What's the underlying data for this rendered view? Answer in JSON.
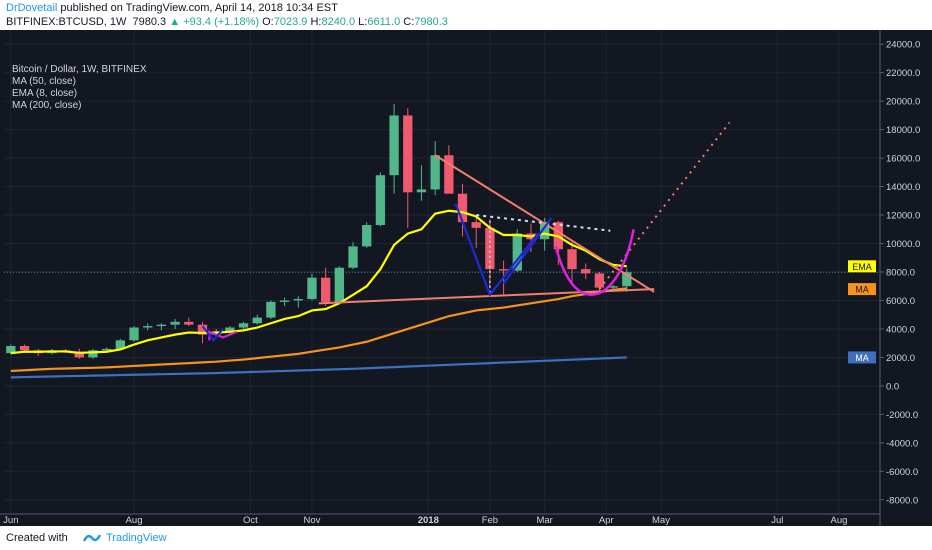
{
  "header": {
    "author": "DrDovetail",
    "published": "published on TradingView.com, April 14, 2018 10:34 EST",
    "symbol": "BITFINEX:BTCUSD, 1W",
    "last_price": "7980.3",
    "change": "+93.4 (+1.18%)",
    "o_label": "O:",
    "o_value": "7023.9",
    "h_label": "H:",
    "h_value": "8240.0",
    "l_label": "L:",
    "l_value": "6611.0",
    "c_label": "C:",
    "c_value": "7980.3"
  },
  "legend": {
    "title": "Bitcoin / Dollar, 1W, BITFINEX",
    "ind1": "MA (50, close)",
    "ind2": "EMA (8, close)",
    "ind3": "MA (200, close)"
  },
  "price_tags": {
    "ema": "EMA",
    "ma50": "MA",
    "ma200": "MA"
  },
  "footer": {
    "created_with": "Created with",
    "brand": "TradingView"
  },
  "colors": {
    "background": "#131722",
    "up": "#52b788",
    "down": "#ef5a6f",
    "ema": "#ffff00",
    "ma50": "#f7931a",
    "ma200": "#3f6fbf",
    "drawing_salmon": "#f0806a",
    "drawing_blue": "#1c2bd6",
    "drawing_magenta": "#e020e0",
    "drawing_dots": "#d9d9f0"
  },
  "chart_data": {
    "type": "candlestick",
    "title": "Bitcoin / Dollar, 1W, BITFINEX",
    "xlabel": "",
    "ylabel": "",
    "ylim": [
      -9000,
      25000
    ],
    "yticks": [
      24000,
      22000,
      20000,
      18000,
      16000,
      14000,
      12000,
      10000,
      8000,
      6000,
      4000,
      2000,
      0,
      -2000,
      -4000,
      -6000,
      -8000
    ],
    "ytick_labels": [
      "24000.0",
      "22000.0",
      "20000.0",
      "18000.0",
      "16000.0",
      "14000.0",
      "12000.0",
      "10000.0",
      "8000.0",
      "6000.0",
      "4000.0",
      "2000.0",
      "0.0",
      "-2000.0",
      "-4000.0",
      "-6000.0",
      "-8000.0"
    ],
    "xticks": [
      {
        "label": "Jun",
        "week": 0
      },
      {
        "label": "Aug",
        "week": 9
      },
      {
        "label": "Oct",
        "week": 17.5
      },
      {
        "label": "Nov",
        "week": 22
      },
      {
        "label": "2018",
        "week": 30.5
      },
      {
        "label": "Feb",
        "week": 35
      },
      {
        "label": "Mar",
        "week": 39
      },
      {
        "label": "Apr",
        "week": 43.5
      },
      {
        "label": "May",
        "week": 47.5
      },
      {
        "label": "Jul",
        "week": 56
      },
      {
        "label": "Aug",
        "week": 60.5
      }
    ],
    "xrange": [
      -0.5,
      63.5
    ],
    "current_price": 7980.3,
    "candles": [
      {
        "o": 2300,
        "h": 2900,
        "l": 2200,
        "c": 2800
      },
      {
        "o": 2800,
        "h": 2900,
        "l": 2400,
        "c": 2500
      },
      {
        "o": 2500,
        "h": 2600,
        "l": 2100,
        "c": 2300
      },
      {
        "o": 2300,
        "h": 2600,
        "l": 2200,
        "c": 2500
      },
      {
        "o": 2500,
        "h": 2600,
        "l": 2300,
        "c": 2400
      },
      {
        "o": 2400,
        "h": 2600,
        "l": 1900,
        "c": 2000
      },
      {
        "o": 2000,
        "h": 2600,
        "l": 1900,
        "c": 2500
      },
      {
        "o": 2500,
        "h": 2700,
        "l": 2400,
        "c": 2600
      },
      {
        "o": 2600,
        "h": 3300,
        "l": 2600,
        "c": 3200
      },
      {
        "o": 3200,
        "h": 4200,
        "l": 3100,
        "c": 4100
      },
      {
        "o": 4100,
        "h": 4400,
        "l": 3900,
        "c": 4200
      },
      {
        "o": 4200,
        "h": 4400,
        "l": 3900,
        "c": 4300
      },
      {
        "o": 4300,
        "h": 4700,
        "l": 4000,
        "c": 4500
      },
      {
        "o": 4500,
        "h": 4800,
        "l": 4200,
        "c": 4300
      },
      {
        "o": 4300,
        "h": 4500,
        "l": 3000,
        "c": 3600
      },
      {
        "o": 3600,
        "h": 4000,
        "l": 3400,
        "c": 3800
      },
      {
        "o": 3800,
        "h": 4200,
        "l": 3700,
        "c": 4100
      },
      {
        "o": 4100,
        "h": 4500,
        "l": 4000,
        "c": 4400
      },
      {
        "o": 4400,
        "h": 5000,
        "l": 4300,
        "c": 4800
      },
      {
        "o": 4800,
        "h": 6000,
        "l": 4700,
        "c": 5900
      },
      {
        "o": 5900,
        "h": 6200,
        "l": 5600,
        "c": 6000
      },
      {
        "o": 6000,
        "h": 6300,
        "l": 5500,
        "c": 6100
      },
      {
        "o": 6100,
        "h": 7900,
        "l": 6000,
        "c": 7600
      },
      {
        "o": 7600,
        "h": 8300,
        "l": 5600,
        "c": 5900
      },
      {
        "o": 5900,
        "h": 8400,
        "l": 5900,
        "c": 8300
      },
      {
        "o": 8300,
        "h": 10100,
        "l": 8200,
        "c": 9800
      },
      {
        "o": 9800,
        "h": 11500,
        "l": 9700,
        "c": 11300
      },
      {
        "o": 11300,
        "h": 15000,
        "l": 11200,
        "c": 14800
      },
      {
        "o": 14800,
        "h": 19800,
        "l": 13500,
        "c": 19000
      },
      {
        "o": 19000,
        "h": 19500,
        "l": 11100,
        "c": 13600
      },
      {
        "o": 13600,
        "h": 15500,
        "l": 13000,
        "c": 13800
      },
      {
        "o": 13800,
        "h": 17200,
        "l": 13400,
        "c": 16200
      },
      {
        "o": 16200,
        "h": 16900,
        "l": 13600,
        "c": 13500
      },
      {
        "o": 13500,
        "h": 14200,
        "l": 10500,
        "c": 11500
      },
      {
        "o": 11500,
        "h": 12000,
        "l": 9700,
        "c": 11100
      },
      {
        "o": 11100,
        "h": 11700,
        "l": 7000,
        "c": 8200
      },
      {
        "o": 8200,
        "h": 8800,
        "l": 6400,
        "c": 8100
      },
      {
        "o": 8100,
        "h": 11000,
        "l": 8000,
        "c": 10700
      },
      {
        "o": 10700,
        "h": 11400,
        "l": 9400,
        "c": 10300
      },
      {
        "o": 10300,
        "h": 11800,
        "l": 9500,
        "c": 11500
      },
      {
        "o": 11500,
        "h": 11600,
        "l": 8500,
        "c": 9600
      },
      {
        "o": 9600,
        "h": 10200,
        "l": 7300,
        "c": 8200
      },
      {
        "o": 8200,
        "h": 8600,
        "l": 7500,
        "c": 7900
      },
      {
        "o": 7900,
        "h": 8000,
        "l": 6500,
        "c": 6900
      },
      {
        "o": 6900,
        "h": 7100,
        "l": 6600,
        "c": 7000
      },
      {
        "o": 7000,
        "h": 8240,
        "l": 6611,
        "c": 7980.3
      }
    ],
    "ema8": [
      2300,
      2400,
      2400,
      2420,
      2420,
      2320,
      2360,
      2400,
      2560,
      2900,
      3200,
      3400,
      3600,
      3750,
      3720,
      3750,
      3800,
      3900,
      4100,
      4400,
      4700,
      4900,
      5300,
      5400,
      5800,
      6400,
      7000,
      8200,
      9900,
      10700,
      11000,
      12100,
      12300,
      12200,
      11900,
      11100,
      10600,
      10600,
      10500,
      10700,
      10500,
      9900,
      9500,
      8900,
      8500,
      8400
    ],
    "ma50": [
      1050,
      1100,
      1150,
      1200,
      1220,
      1250,
      1270,
      1300,
      1350,
      1400,
      1450,
      1500,
      1550,
      1600,
      1650,
      1700,
      1780,
      1850,
      1950,
      2050,
      2150,
      2250,
      2400,
      2550,
      2700,
      2900,
      3100,
      3400,
      3700,
      4000,
      4300,
      4600,
      4900,
      5100,
      5300,
      5400,
      5500,
      5650,
      5800,
      5950,
      6100,
      6300,
      6450,
      6600,
      6750,
      6850
    ],
    "ma200": [
      600,
      620,
      640,
      660,
      680,
      700,
      720,
      740,
      760,
      780,
      800,
      820,
      840,
      860,
      880,
      900,
      930,
      960,
      990,
      1020,
      1050,
      1080,
      1110,
      1140,
      1170,
      1200,
      1240,
      1280,
      1320,
      1360,
      1400,
      1440,
      1480,
      1520,
      1560,
      1600,
      1640,
      1680,
      1720,
      1760,
      1800,
      1840,
      1880,
      1920,
      1960,
      2000
    ]
  }
}
